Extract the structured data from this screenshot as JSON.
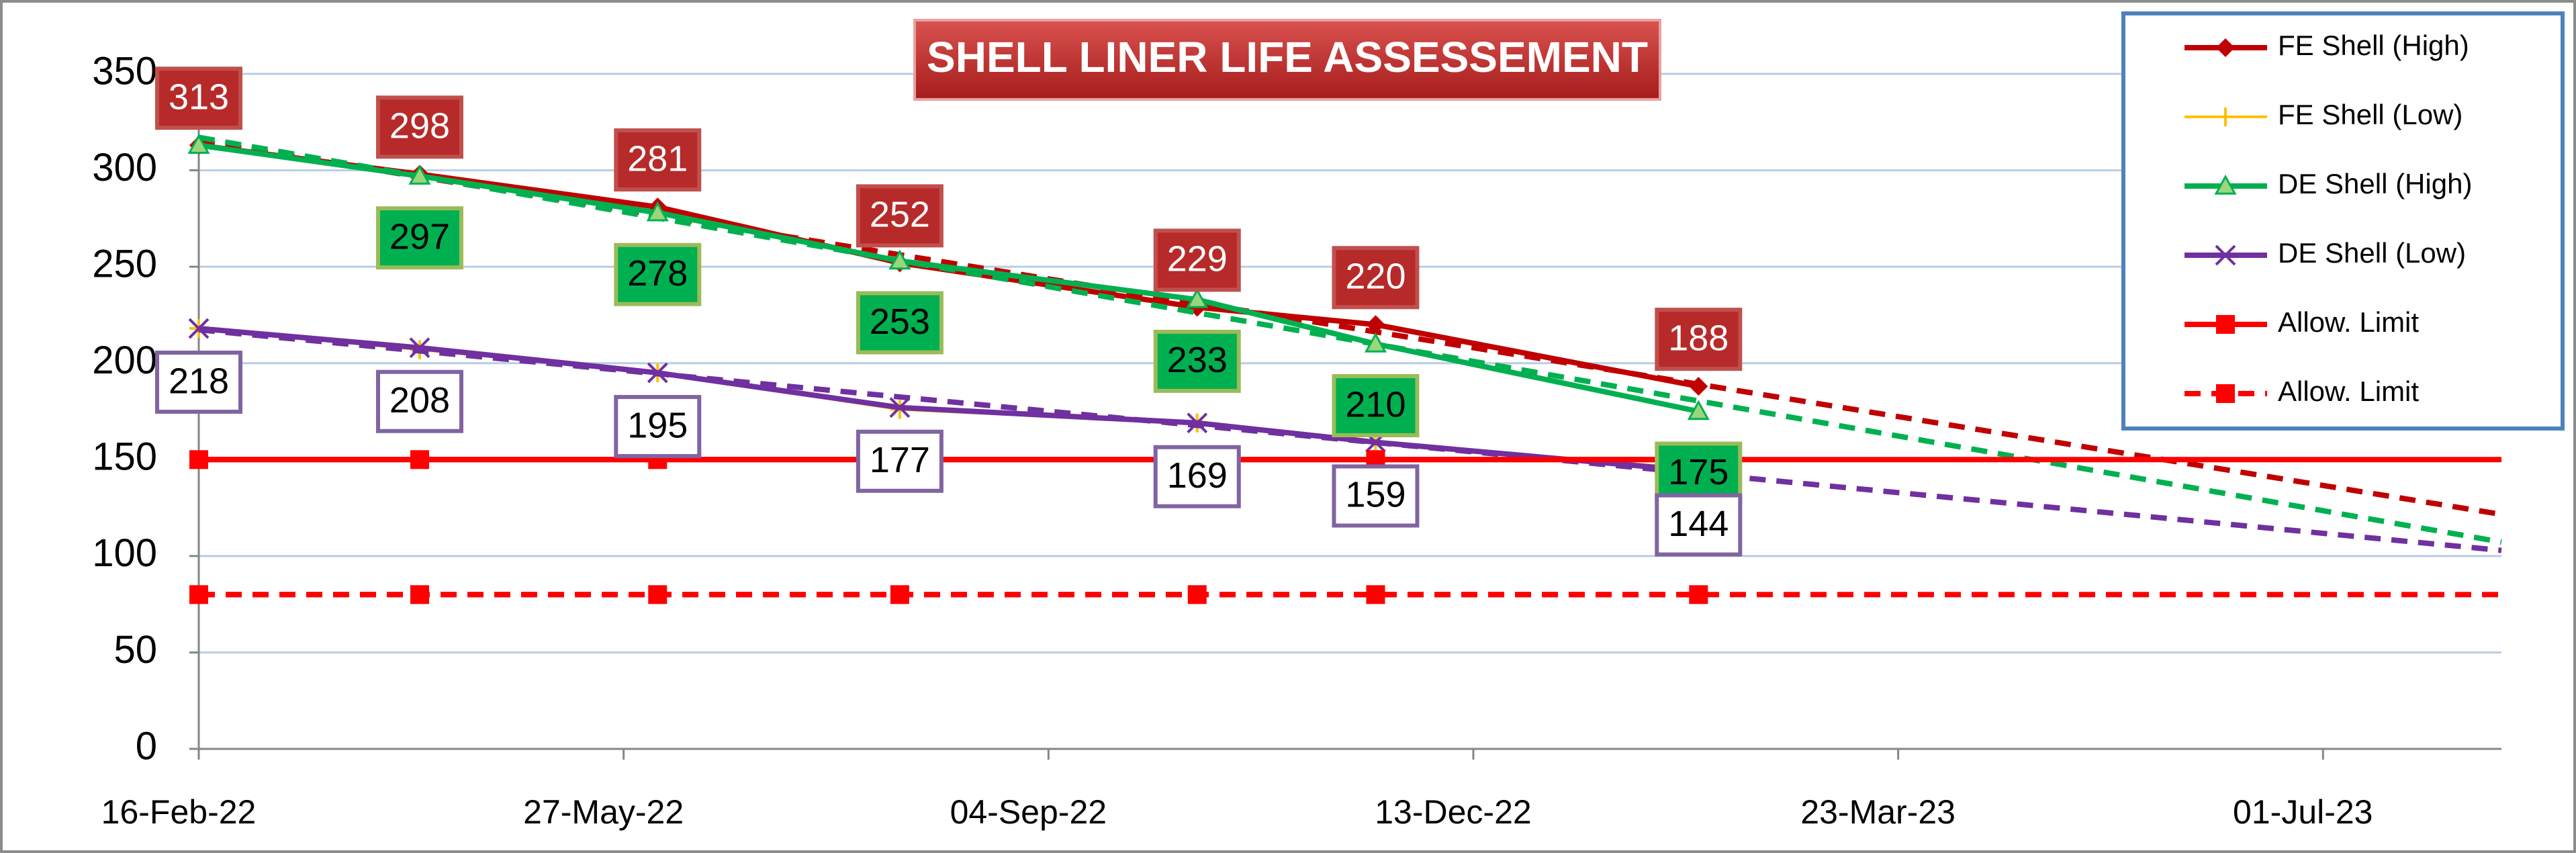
{
  "chart_data": {
    "type": "line",
    "title": "SHELL LINER LIFE ASSESSEMENT",
    "x": [
      "2022-02-16",
      "2022-04-09",
      "2022-06-04",
      "2022-07-31",
      "2022-10-09",
      "2022-11-20",
      "2023-02-04"
    ],
    "xlim": [
      "2022-02-16",
      "2023-08-12"
    ],
    "xticks": [
      {
        "value": "2022-02-16",
        "label": "16-Feb-22"
      },
      {
        "value": "2022-05-27",
        "label": "27-May-22"
      },
      {
        "value": "2022-09-04",
        "label": "04-Sep-22"
      },
      {
        "value": "2022-12-13",
        "label": "13-Dec-22"
      },
      {
        "value": "2023-03-23",
        "label": "23-Mar-23"
      },
      {
        "value": "2023-07-01",
        "label": "01-Jul-23"
      }
    ],
    "ylim": [
      0,
      350
    ],
    "yticks": [
      0,
      50,
      100,
      150,
      200,
      250,
      300,
      350
    ],
    "grid": true,
    "legend": "top-right",
    "series": [
      {
        "name": "FE Shell (High)",
        "color": "#c00000",
        "marker": "diamond",
        "dashed": false,
        "trendline": true,
        "values": [
          313,
          298,
          281,
          252,
          229,
          220,
          188
        ],
        "labeled": [
          true,
          true,
          true,
          true,
          true,
          true,
          true
        ],
        "label_position": "above",
        "label_fill": "#b72a2a",
        "label_border": "#c0504d",
        "label_text": "#ffffff"
      },
      {
        "name": "FE Shell (Low)",
        "color": "#ffc000",
        "marker": "plus",
        "dashed": false,
        "trendline": false,
        "values": [
          218,
          207,
          195,
          176,
          169,
          159,
          145
        ]
      },
      {
        "name": "DE Shell (High)",
        "color": "#00b050",
        "marker": "triangle",
        "dashed": false,
        "trendline": true,
        "values": [
          313,
          297,
          278,
          253,
          233,
          210,
          175
        ],
        "labeled": [
          false,
          true,
          true,
          true,
          true,
          true,
          true
        ],
        "label_position": "below",
        "label_fill": "#00b050",
        "label_border": "#9bbb59",
        "label_text": "#000000"
      },
      {
        "name": "DE Shell (Low)",
        "color": "#7030a0",
        "marker": "x",
        "dashed": false,
        "trendline": true,
        "values": [
          218,
          208,
          195,
          177,
          169,
          159,
          144
        ],
        "labeled": [
          true,
          true,
          true,
          true,
          true,
          true,
          true
        ],
        "label_position": "below",
        "label_fill": "#ffffff",
        "label_border": "#8064a2",
        "label_text": "#000000"
      },
      {
        "name": "Allow. Limit",
        "color": "#ff0000",
        "marker": "square",
        "dashed": false,
        "trendline": true,
        "values": [
          150,
          150,
          150,
          150,
          150,
          150,
          150
        ]
      },
      {
        "name": "Allow. Limit",
        "color": "#ff0000",
        "marker": "square",
        "dashed": true,
        "trendline": true,
        "values": [
          80,
          80,
          80,
          80,
          80,
          80,
          80
        ]
      }
    ]
  }
}
